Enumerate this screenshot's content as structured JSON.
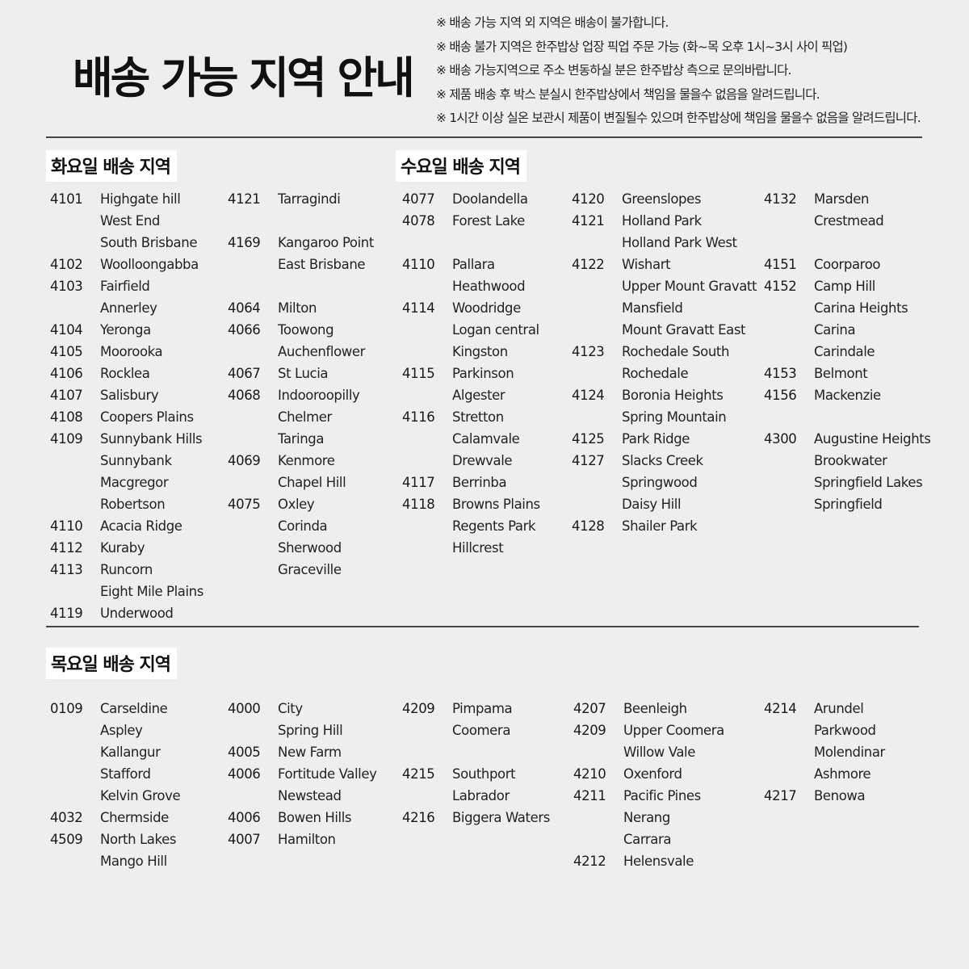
{
  "title": "배송 가능 지역 안내",
  "notes": [
    "※ 배송 가능 지역 외 지역은 배송이 불가합니다.",
    "※ 배송 불가 지역은 한주밥상 업장 픽업 주문 가능 (화~목 오후 1시~3시 사이 픽업)",
    "※ 배송 가능지역으로 주소 변동하실 분은 한주밥상 측으로 문의바랍니다.",
    "※ 제품 배송 후 박스 분실시 한주밥상에서 책임을 물을수 없음을 알려드립니다.",
    "※ 1시간 이상 실온 보관시 제품이 변질될수 있으며 한주밥상에 책임을 물을수 없음을 알려드립니다."
  ],
  "sections": {
    "tuesday": {
      "title": "화요일 배송 지역",
      "columns": [
        [
          [
            "4101",
            "Highgate hill"
          ],
          [
            "",
            "West End"
          ],
          [
            "",
            "South Brisbane"
          ],
          [
            "4102",
            "Woolloongabba"
          ],
          [
            "4103",
            "Fairfield"
          ],
          [
            "",
            "Annerley"
          ],
          [
            "4104",
            "Yeronga"
          ],
          [
            "4105",
            "Moorooka"
          ],
          [
            "4106",
            "Rocklea"
          ],
          [
            "4107",
            "Salisbury"
          ],
          [
            "4108",
            "Coopers Plains"
          ],
          [
            "4109",
            "Sunnybank Hills"
          ],
          [
            "",
            "Sunnybank"
          ],
          [
            "",
            "Macgregor"
          ],
          [
            "",
            "Robertson"
          ],
          [
            "4110",
            "Acacia Ridge"
          ],
          [
            "4112",
            "Kuraby"
          ],
          [
            "4113",
            "Runcorn"
          ],
          [
            "",
            "Eight Mile Plains"
          ],
          [
            "4119",
            "Underwood"
          ]
        ],
        [
          [
            "4121",
            "Tarragindi"
          ],
          [
            "",
            ""
          ],
          [
            "4169",
            "Kangaroo Point"
          ],
          [
            "",
            "East Brisbane"
          ],
          [
            "",
            ""
          ],
          [
            "4064",
            "Milton"
          ],
          [
            "4066",
            "Toowong"
          ],
          [
            "",
            "Auchenflower"
          ],
          [
            "4067",
            "St Lucia"
          ],
          [
            "4068",
            "Indooroopilly"
          ],
          [
            "",
            "Chelmer"
          ],
          [
            "",
            "Taringa"
          ],
          [
            "4069",
            "Kenmore"
          ],
          [
            "",
            "Chapel Hill"
          ],
          [
            "4075",
            "Oxley"
          ],
          [
            "",
            "Corinda"
          ],
          [
            "",
            "Sherwood"
          ],
          [
            "",
            "Graceville"
          ]
        ]
      ]
    },
    "wednesday": {
      "title": "수요일 배송 지역",
      "columns": [
        [
          [
            "4077",
            "Doolandella"
          ],
          [
            "4078",
            "Forest Lake"
          ],
          [
            "",
            ""
          ],
          [
            "4110",
            "Pallara"
          ],
          [
            "",
            "Heathwood"
          ],
          [
            "4114",
            "Woodridge"
          ],
          [
            "",
            "Logan central"
          ],
          [
            "",
            "Kingston"
          ],
          [
            "4115",
            "Parkinson"
          ],
          [
            "",
            "Algester"
          ],
          [
            "4116",
            "Stretton"
          ],
          [
            "",
            "Calamvale"
          ],
          [
            "",
            "Drewvale"
          ],
          [
            "4117",
            "Berrinba"
          ],
          [
            "4118",
            "Browns Plains"
          ],
          [
            "",
            "Regents Park"
          ],
          [
            "",
            "Hillcrest"
          ]
        ],
        [
          [
            "4120",
            "Greenslopes"
          ],
          [
            "4121",
            "Holland Park"
          ],
          [
            "",
            "Holland Park West"
          ],
          [
            "4122",
            "Wishart"
          ],
          [
            "",
            "Upper Mount Gravatt"
          ],
          [
            "",
            "Mansfield"
          ],
          [
            "",
            "Mount Gravatt East"
          ],
          [
            "4123",
            "Rochedale South"
          ],
          [
            "",
            "Rochedale"
          ],
          [
            "4124",
            "Boronia Heights"
          ],
          [
            "",
            "Spring Mountain"
          ],
          [
            "4125",
            "Park Ridge"
          ],
          [
            "4127",
            "Slacks Creek"
          ],
          [
            "",
            "Springwood"
          ],
          [
            "",
            "Daisy Hill"
          ],
          [
            "4128",
            "Shailer Park"
          ]
        ],
        [
          [
            "4132",
            "Marsden"
          ],
          [
            "",
            "Crestmead"
          ],
          [
            "",
            ""
          ],
          [
            "4151",
            "Coorparoo"
          ],
          [
            "4152",
            "Camp Hill"
          ],
          [
            "",
            "Carina Heights"
          ],
          [
            "",
            "Carina"
          ],
          [
            "",
            "Carindale"
          ],
          [
            "4153",
            "Belmont"
          ],
          [
            "4156",
            "Mackenzie"
          ],
          [
            "",
            ""
          ],
          [
            "4300",
            "Augustine Heights"
          ],
          [
            "",
            "Brookwater"
          ],
          [
            "",
            "Springfield Lakes"
          ],
          [
            "",
            "Springfield"
          ]
        ]
      ]
    },
    "thursday": {
      "title": "목요일 배송 지역",
      "columns": [
        [
          [
            "0109",
            "Carseldine"
          ],
          [
            "",
            "Aspley"
          ],
          [
            "",
            "Kallangur"
          ],
          [
            "",
            "Stafford"
          ],
          [
            "",
            "Kelvin Grove"
          ],
          [
            "4032",
            "Chermside"
          ],
          [
            "4509",
            "North Lakes"
          ],
          [
            "",
            "Mango Hill"
          ]
        ],
        [
          [
            "4000",
            "City"
          ],
          [
            "",
            "Spring Hill"
          ],
          [
            "4005",
            "New Farm"
          ],
          [
            "4006",
            "Fortitude Valley"
          ],
          [
            "",
            "Newstead"
          ],
          [
            "4006",
            "Bowen Hills"
          ],
          [
            "4007",
            "Hamilton"
          ]
        ],
        [
          [
            "4209",
            "Pimpama"
          ],
          [
            "",
            "Coomera"
          ],
          [
            "",
            ""
          ],
          [
            "4215",
            "Southport"
          ],
          [
            "",
            "Labrador"
          ],
          [
            "4216",
            "Biggera Waters"
          ]
        ],
        [
          [
            "4207",
            "Beenleigh"
          ],
          [
            "4209",
            "Upper Coomera"
          ],
          [
            "",
            "Willow Vale"
          ],
          [
            "4210",
            "Oxenford"
          ],
          [
            "4211",
            "Pacific Pines"
          ],
          [
            "",
            "Nerang"
          ],
          [
            "",
            "Carrara"
          ],
          [
            "4212",
            "Helensvale"
          ]
        ],
        [
          [
            "4214",
            "Arundel"
          ],
          [
            "",
            "Parkwood"
          ],
          [
            "",
            "Molendinar"
          ],
          [
            "",
            "Ashmore"
          ],
          [
            "4217",
            "Benowa"
          ]
        ]
      ]
    }
  }
}
